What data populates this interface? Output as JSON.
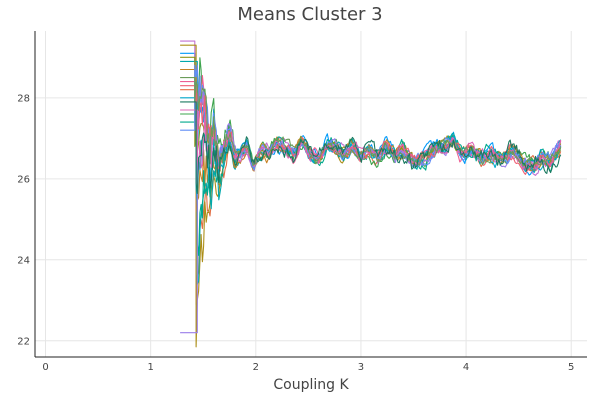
{
  "chart_data": {
    "type": "line",
    "title": "Means Cluster 3",
    "xlabel": "Coupling K",
    "ylabel": "",
    "xlim": [
      -0.1,
      5.15
    ],
    "ylim": [
      21.6,
      29.65
    ],
    "x_ticks": [
      0,
      1,
      2,
      3,
      4,
      5
    ],
    "y_ticks": [
      22,
      24,
      26,
      28
    ],
    "grid": true,
    "legend": "none",
    "x_start": 1.42,
    "x_end": 4.9,
    "envelope": [
      [
        1.42,
        26.6
      ],
      [
        1.47,
        28.1
      ],
      [
        1.52,
        27.7
      ],
      [
        1.56,
        26.3
      ],
      [
        1.6,
        27.2
      ],
      [
        1.65,
        26.2
      ],
      [
        1.7,
        26.7
      ],
      [
        1.75,
        27.2
      ],
      [
        1.8,
        26.5
      ],
      [
        1.86,
        26.6
      ],
      [
        1.92,
        26.8
      ],
      [
        1.98,
        26.3
      ],
      [
        2.05,
        26.7
      ],
      [
        2.12,
        26.6
      ],
      [
        2.2,
        26.9
      ],
      [
        2.28,
        26.8
      ],
      [
        2.36,
        26.6
      ],
      [
        2.44,
        26.9
      ],
      [
        2.52,
        26.6
      ],
      [
        2.6,
        26.5
      ],
      [
        2.68,
        26.9
      ],
      [
        2.76,
        26.8
      ],
      [
        2.84,
        26.6
      ],
      [
        2.92,
        26.8
      ],
      [
        3.0,
        26.6
      ],
      [
        3.08,
        26.7
      ],
      [
        3.16,
        26.5
      ],
      [
        3.24,
        26.8
      ],
      [
        3.32,
        26.6
      ],
      [
        3.4,
        26.7
      ],
      [
        3.5,
        26.4
      ],
      [
        3.6,
        26.5
      ],
      [
        3.7,
        26.7
      ],
      [
        3.8,
        26.8
      ],
      [
        3.88,
        27.0
      ],
      [
        3.95,
        26.6
      ],
      [
        4.05,
        26.7
      ],
      [
        4.15,
        26.5
      ],
      [
        4.25,
        26.6
      ],
      [
        4.35,
        26.5
      ],
      [
        4.45,
        26.7
      ],
      [
        4.55,
        26.4
      ],
      [
        4.65,
        26.3
      ],
      [
        4.72,
        26.5
      ],
      [
        4.8,
        26.4
      ],
      [
        4.9,
        26.8
      ]
    ],
    "series": [
      {
        "color": "#009AFA",
        "start_y": 29.1,
        "initial_y": 27.3,
        "amp": 0.18
      },
      {
        "color": "#E26F46",
        "start_y": 28.2,
        "initial_y": 22.9,
        "amp": 0.15
      },
      {
        "color": "#3DA44D",
        "start_y": 27.6,
        "initial_y": 28.6,
        "amp": 0.2
      },
      {
        "color": "#C271D2",
        "start_y": 29.4,
        "initial_y": 27.8,
        "amp": 0.17
      },
      {
        "color": "#AC8E18",
        "start_y": 29.3,
        "initial_y": 21.85,
        "amp": 0.14
      },
      {
        "color": "#00A9AD",
        "start_y": 28.9,
        "initial_y": 23.4,
        "amp": 0.16
      },
      {
        "color": "#ED5E93",
        "start_y": 28.4,
        "initial_y": 28.2,
        "amp": 0.15
      },
      {
        "color": "#C68225",
        "start_y": 28.7,
        "initial_y": 25.2,
        "amp": 0.16
      },
      {
        "color": "#00A98D",
        "start_y": 27.4,
        "initial_y": 24.4,
        "amp": 0.22
      },
      {
        "color": "#8E971D",
        "start_y": 29.0,
        "initial_y": 26.8,
        "amp": 0.14
      },
      {
        "color": "#00A8CB",
        "start_y": 28.0,
        "initial_y": 25.8,
        "amp": 0.18
      },
      {
        "color": "#9B7FE9",
        "start_y": 22.2,
        "initial_y": 27.6,
        "amp": 0.16
      },
      {
        "color": "#618DF6",
        "start_y": 27.2,
        "initial_y": 28.8,
        "amp": 0.15
      },
      {
        "color": "#F05F73",
        "start_y": 28.3,
        "initial_y": 27.1,
        "amp": 0.17
      },
      {
        "color": "#DD64B5",
        "start_y": 27.7,
        "initial_y": 26.5,
        "amp": 0.16
      },
      {
        "color": "#6B9D59",
        "start_y": 28.5,
        "initial_y": 27.9,
        "amp": 0.15
      },
      {
        "color": "#1B7A60",
        "start_y": 27.9,
        "initial_y": 25.9,
        "amp": 0.26
      }
    ]
  }
}
